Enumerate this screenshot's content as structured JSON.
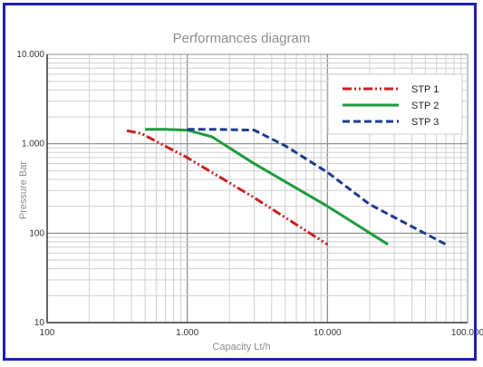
{
  "chart_data": {
    "type": "line",
    "title": "Performances diagram",
    "xlabel": "Capacity Lt/h",
    "ylabel": "Pressure Bar",
    "x_scale": "log",
    "y_scale": "log",
    "xlim": [
      100,
      100000
    ],
    "ylim": [
      10,
      10000
    ],
    "x_ticks": [
      100,
      1000,
      10000,
      100000
    ],
    "x_tick_labels": [
      "100",
      "1.000",
      "10.000",
      "100.000"
    ],
    "y_ticks": [
      10,
      100,
      1000,
      10000
    ],
    "y_tick_labels": [
      "10",
      "100",
      "1.000",
      "10.000"
    ],
    "grid": true,
    "legend_position": "top-right",
    "series": [
      {
        "name": "STP 1",
        "color": "#cc1f1f",
        "dash": "dash-dot-dot",
        "x": [
          370,
          470,
          1000,
          3000,
          10000
        ],
        "y": [
          1400,
          1300,
          700,
          250,
          75
        ]
      },
      {
        "name": "STP 2",
        "color": "#1f9a3c",
        "dash": "solid",
        "x": [
          500,
          700,
          1000,
          1500,
          3000,
          10000,
          27000
        ],
        "y": [
          1450,
          1450,
          1420,
          1200,
          600,
          200,
          75
        ]
      },
      {
        "name": "STP 3",
        "color": "#1e3c8c",
        "dash": "dashed",
        "x": [
          1000,
          1500,
          3000,
          5000,
          10000,
          20000,
          70000
        ],
        "y": [
          1450,
          1450,
          1420,
          950,
          480,
          210,
          75
        ]
      }
    ]
  }
}
